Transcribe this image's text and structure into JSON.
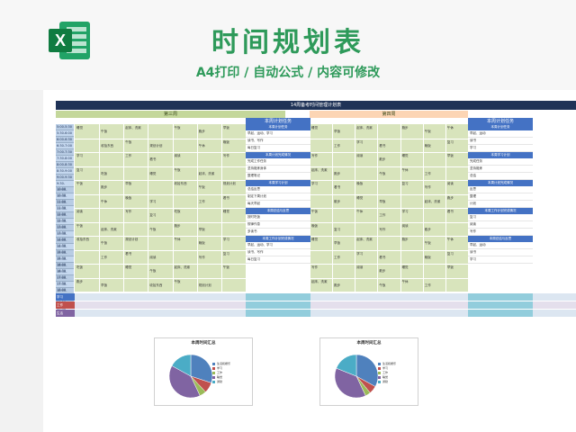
{
  "header": {
    "title": "时间规划表",
    "subtitle": "A4打印 / 自动公式 / 内容可修改"
  },
  "sheet": {
    "doc_title": "14周备考时间管理计划表",
    "left_week": "第三周",
    "right_week": "第四周",
    "left_summary_title": "本周计划任务",
    "right_summary_title": "本周计划任务",
    "times": [
      "5:00-5:30",
      "5:30-6:00",
      "6:00-6:30",
      "6:30-7:00",
      "7:00-7:30",
      "7:30-8:00",
      "8:00-8:30",
      "8:30-9:00",
      "9:00-9:30",
      "9:30-10:00",
      "10:00-10:30",
      "10:30-11:00",
      "11:00-11:30",
      "11:30-12:00",
      "12:00-12:30",
      "12:30-13:00",
      "13:00-13:30",
      "13:30-14:00",
      "14:00-14:30",
      "14:30-15:00",
      "15:00-15:30",
      "15:30-16:00",
      "16:00-16:30",
      "16:30-17:00",
      "17:00-17:30",
      "17:30-18:00",
      "18:00-18:30",
      "18:30-19:00",
      "19:00-19:30"
    ],
    "left_cells": [
      "睡觉",
      "午饭",
      "起床、洗漱",
      "午饭",
      "跑步",
      "早饭",
      "收拾东西",
      "午饭",
      "规划计划",
      "午休",
      "晚饭",
      "学习",
      "工作",
      "看书",
      "阅读",
      "写作",
      "复习",
      "吃饭"
    ],
    "right_cells": [
      "睡觉",
      "早饭",
      "起床、洗漱",
      "跑步",
      "午饭",
      "午休",
      "工作",
      "学习",
      "看书",
      "晚饭",
      "复习",
      "写作",
      "阅读",
      "散步"
    ],
    "left_side": {
      "sections": [
        "本周计划任务",
        "本周计划完成情况",
        "本周学习计划",
        "本周总结与反思",
        "本周工作计划完成情况"
      ],
      "lines": [
        "早起、运动、学习",
        "读书、写作",
        "每日复习",
        "完成工作任务",
        "坚持锻炼身体",
        "整理笔记",
        "总结反思",
        "制定下周计划",
        "每天早起",
        "按时吃饭",
        "规律作息",
        "多读书"
      ]
    },
    "right_side": {
      "sections": [
        "本周计划任务",
        "本周学习计划",
        "本周计划完成情况",
        "本周工作计划完成情况",
        "本周总结与反思"
      ],
      "lines": [
        "早起、运动",
        "读书",
        "学习",
        "完成任务",
        "坚持锻炼",
        "总结",
        "反思",
        "整理",
        "计划",
        "复习",
        "阅读",
        "写作"
      ]
    },
    "bands": [
      {
        "label": "学习",
        "color": "#4472c4"
      },
      {
        "label": "工作",
        "color": "#c0504d"
      },
      {
        "label": "生活",
        "color": "#8064a2"
      }
    ]
  },
  "charts": [
    {
      "title": "本周时间汇总",
      "chart_data": {
        "type": "pie",
        "title": "本周时间汇总",
        "categories": [
          "生活和娱乐",
          "学习",
          "工作",
          "睡觉",
          "通勤"
        ],
        "values": [
          30,
          8,
          5,
          40,
          17
        ],
        "colors": [
          "#4f81bd",
          "#c0504d",
          "#9bbb59",
          "#8064a2",
          "#4bacc6"
        ]
      }
    },
    {
      "title": "本周时间汇总",
      "chart_data": {
        "type": "pie",
        "title": "本周时间汇总",
        "categories": [
          "生活和娱乐",
          "学习",
          "工作",
          "睡觉",
          "通勤"
        ],
        "values": [
          33,
          6,
          4,
          38,
          19
        ],
        "colors": [
          "#4f81bd",
          "#c0504d",
          "#9bbb59",
          "#8064a2",
          "#4bacc6"
        ]
      }
    }
  ]
}
